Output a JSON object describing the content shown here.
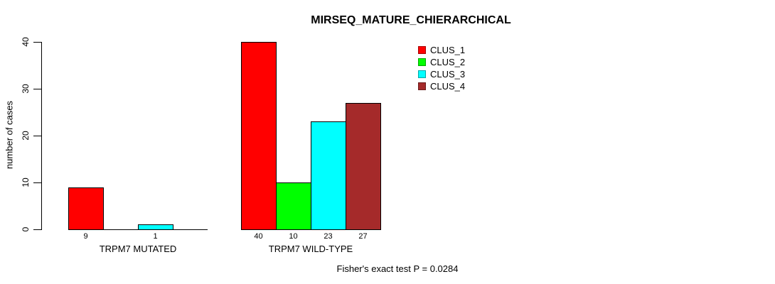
{
  "chart_data": {
    "type": "bar",
    "title": "MIRSEQ_MATURE_CHIERARCHICAL",
    "ylabel": "number of cases",
    "xlabel": "",
    "ylim": [
      0,
      40
    ],
    "yticks": [
      0,
      10,
      20,
      30,
      40
    ],
    "categories": [
      "TRPM7 MUTATED",
      "TRPM7 WILD-TYPE"
    ],
    "series": [
      {
        "name": "CLUS_1",
        "color": "#FF0000",
        "values": [
          9,
          40
        ]
      },
      {
        "name": "CLUS_2",
        "color": "#00FF00",
        "values": [
          0,
          10
        ]
      },
      {
        "name": "CLUS_3",
        "color": "#00FFFF",
        "values": [
          1,
          23
        ]
      },
      {
        "name": "CLUS_4",
        "color": "#A52A2A",
        "values": [
          0,
          27
        ]
      }
    ],
    "bar_value_labels": {
      "TRPM7 MUTATED": [
        9,
        null,
        1,
        null
      ],
      "TRPM7 WILD-TYPE": [
        40,
        10,
        23,
        27
      ]
    },
    "annotation": "Fisher's exact test P = 0.0284",
    "legend_position": "top-right-inside",
    "grid": false,
    "background": "#FFFFFF",
    "text_color": "#000000"
  }
}
